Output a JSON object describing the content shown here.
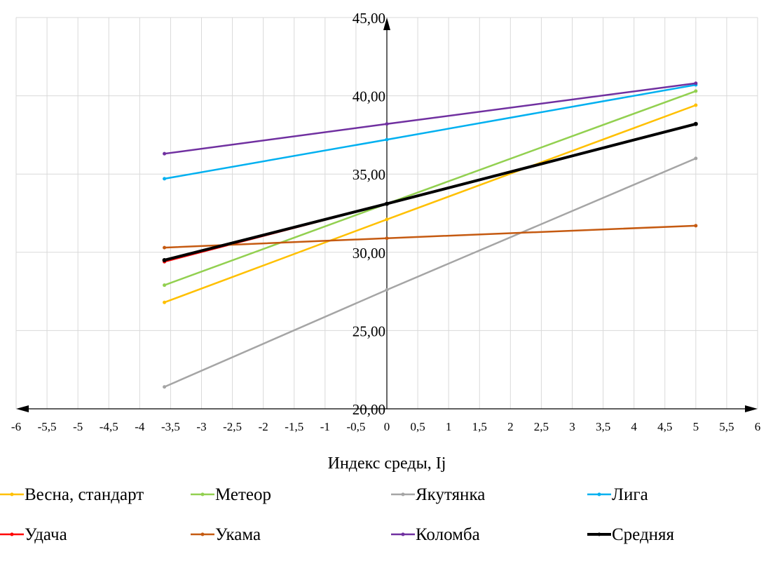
{
  "chart_data": {
    "type": "line",
    "title": "",
    "xlabel": "Индекс среды, Ij",
    "ylabel": "",
    "xlim": [
      -6,
      6
    ],
    "ylim": [
      20,
      45
    ],
    "grid": true,
    "legend_position": "bottom",
    "x_ticks": [
      "-6",
      "-5,5",
      "-5",
      "-4,5",
      "-4",
      "-3,5",
      "-3",
      "-2,5",
      "-2",
      "-1,5",
      "-1",
      "-0,5",
      "0",
      "0,5",
      "1",
      "1,5",
      "2",
      "2,5",
      "3",
      "3,5",
      "4",
      "4,5",
      "5",
      "5,5",
      "6"
    ],
    "y_ticks": [
      "20,00",
      "25,00",
      "30,00",
      "35,00",
      "40,00",
      "45,00"
    ],
    "x": [
      -3.6,
      0,
      5
    ],
    "series": [
      {
        "name": "Весна, стандарт",
        "color": "#FFC000",
        "values": [
          26.8,
          32.1,
          39.4
        ]
      },
      {
        "name": "Метеор",
        "color": "#92D050",
        "values": [
          27.9,
          33.1,
          40.3
        ]
      },
      {
        "name": "Якутянка",
        "color": "#A5A5A5",
        "values": [
          21.4,
          27.6,
          36.0
        ]
      },
      {
        "name": "Лига",
        "color": "#00B0F0",
        "values": [
          34.7,
          37.2,
          40.7
        ]
      },
      {
        "name": "Удача",
        "color": "#FF0000",
        "values": [
          29.4,
          33.1,
          38.2
        ]
      },
      {
        "name": "Укама",
        "color": "#C55A11",
        "values": [
          30.3,
          30.9,
          31.7
        ]
      },
      {
        "name": "Коломба",
        "color": "#7030A0",
        "values": [
          36.3,
          38.2,
          40.8
        ]
      },
      {
        "name": "Средняя",
        "color": "#000000",
        "values": [
          29.5,
          33.1,
          38.2
        ]
      }
    ]
  }
}
